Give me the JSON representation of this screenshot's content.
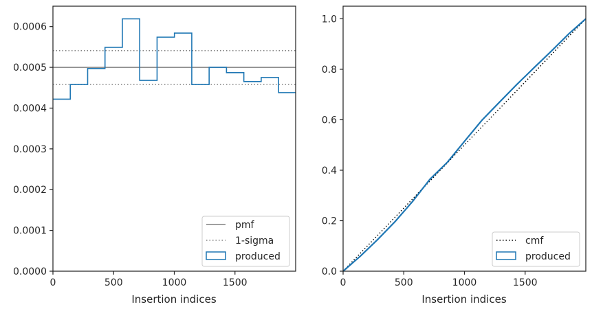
{
  "chart_data": [
    {
      "type": "step",
      "xlabel": "Insertion indices",
      "ylabel": "",
      "xlim": [
        0,
        2000
      ],
      "ylim": [
        0,
        0.00065
      ],
      "xticks": [
        0,
        500,
        1000,
        1500
      ],
      "xtick_labels": [
        "0",
        "500",
        "1000",
        "1500"
      ],
      "yticks": [
        0,
        0.0001,
        0.0002,
        0.0003,
        0.0004,
        0.0005,
        0.0006
      ],
      "ytick_labels": [
        "0.0000",
        "0.0001",
        "0.0002",
        "0.0003",
        "0.0004",
        "0.0005",
        "0.0006"
      ],
      "legend_position": "lower-right",
      "reference_lines": [
        {
          "name": "pmf",
          "value": 0.0005,
          "color": "#808080",
          "style": "solid"
        },
        {
          "name": "1-sigma",
          "values": [
            0.000458,
            0.000541
          ],
          "color": "#808080",
          "style": "dotted"
        }
      ],
      "series": [
        {
          "name": "produced",
          "color": "#1f77b4",
          "bin_edges": [
            0,
            143,
            286,
            429,
            572,
            715,
            858,
            1001,
            1144,
            1287,
            1430,
            1573,
            1716,
            1859,
            2000
          ],
          "values": [
            0.000422,
            0.000458,
            0.000497,
            0.000549,
            0.000619,
            0.000468,
            0.000574,
            0.000584,
            0.000458,
            0.0005,
            0.000487,
            0.000465,
            0.000475,
            0.000438
          ]
        }
      ],
      "legend": [
        "pmf",
        "1-sigma",
        "produced"
      ]
    },
    {
      "type": "line",
      "xlabel": "Insertion indices",
      "ylabel": "",
      "xlim": [
        0,
        2000
      ],
      "ylim": [
        0,
        1.05
      ],
      "xticks": [
        0,
        500,
        1000,
        1500
      ],
      "xtick_labels": [
        "0",
        "500",
        "1000",
        "1500"
      ],
      "yticks": [
        0,
        0.2,
        0.4,
        0.6,
        0.8,
        1.0
      ],
      "ytick_labels": [
        "0.0",
        "0.2",
        "0.4",
        "0.6",
        "0.8",
        "1.0"
      ],
      "legend_position": "lower-right",
      "series": [
        {
          "name": "cmf",
          "color": "#000000",
          "style": "dotted",
          "x": [
            0,
            2000
          ],
          "y": [
            0,
            1.0
          ]
        },
        {
          "name": "produced",
          "color": "#1f77b4",
          "style": "solid",
          "x": [
            0,
            143,
            286,
            429,
            572,
            715,
            858,
            1001,
            1144,
            1287,
            1430,
            1573,
            1716,
            1859,
            2000
          ],
          "y": [
            0,
            0.06,
            0.126,
            0.197,
            0.276,
            0.364,
            0.431,
            0.515,
            0.598,
            0.669,
            0.739,
            0.806,
            0.872,
            0.94,
            1.0
          ]
        }
      ],
      "legend": [
        "cmf",
        "produced"
      ]
    }
  ]
}
